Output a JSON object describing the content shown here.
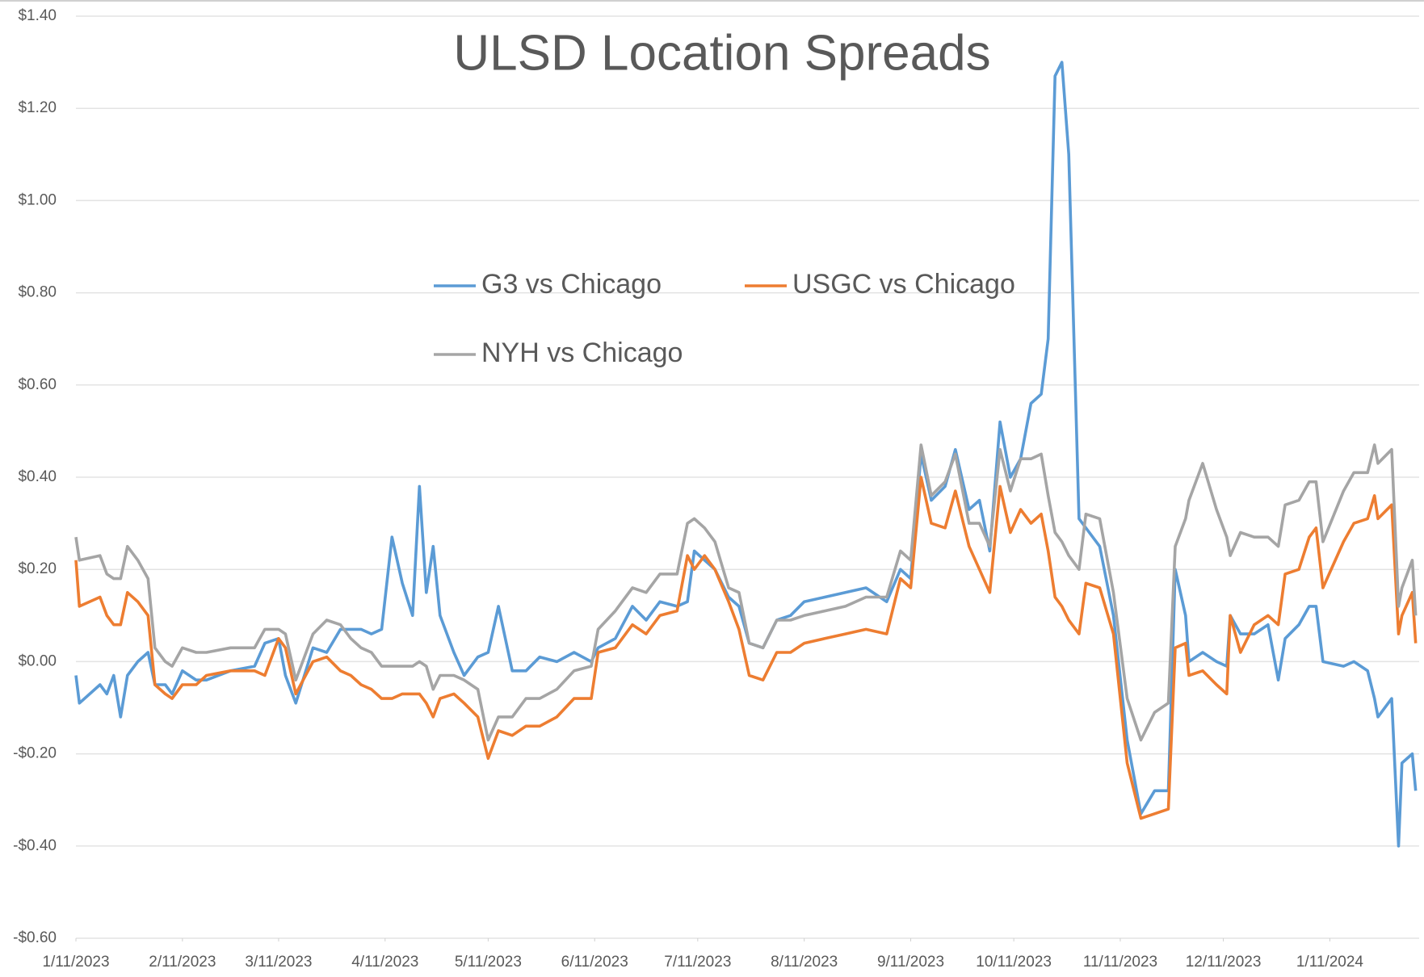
{
  "chart_data": {
    "type": "line",
    "title": "ULSD Location Spreads",
    "x": [
      "2023-01-11",
      "2023-01-12",
      "2023-01-18",
      "2023-01-20",
      "2023-01-22",
      "2023-01-24",
      "2023-01-26",
      "2023-01-29",
      "2023-02-01",
      "2023-02-03",
      "2023-02-06",
      "2023-02-08",
      "2023-02-11",
      "2023-02-15",
      "2023-02-18",
      "2023-02-25",
      "2023-03-04",
      "2023-03-07",
      "2023-03-11",
      "2023-03-13",
      "2023-03-16",
      "2023-03-21",
      "2023-03-25",
      "2023-03-29",
      "2023-04-01",
      "2023-04-04",
      "2023-04-07",
      "2023-04-10",
      "2023-04-13",
      "2023-04-16",
      "2023-04-19",
      "2023-04-21",
      "2023-04-23",
      "2023-04-25",
      "2023-04-27",
      "2023-05-01",
      "2023-05-04",
      "2023-05-08",
      "2023-05-11",
      "2023-05-14",
      "2023-05-18",
      "2023-05-22",
      "2023-05-26",
      "2023-05-31",
      "2023-06-05",
      "2023-06-10",
      "2023-06-12",
      "2023-06-17",
      "2023-06-22",
      "2023-06-26",
      "2023-06-30",
      "2023-07-05",
      "2023-07-08",
      "2023-07-10",
      "2023-07-13",
      "2023-07-16",
      "2023-07-20",
      "2023-07-23",
      "2023-07-26",
      "2023-07-30",
      "2023-08-03",
      "2023-08-07",
      "2023-08-11",
      "2023-08-17",
      "2023-08-23",
      "2023-08-29",
      "2023-09-04",
      "2023-09-08",
      "2023-09-11",
      "2023-09-14",
      "2023-09-17",
      "2023-09-21",
      "2023-09-24",
      "2023-09-28",
      "2023-10-01",
      "2023-10-04",
      "2023-10-07",
      "2023-10-10",
      "2023-10-13",
      "2023-10-16",
      "2023-10-19",
      "2023-10-21",
      "2023-10-23",
      "2023-10-25",
      "2023-10-27",
      "2023-10-30",
      "2023-11-01",
      "2023-11-05",
      "2023-11-09",
      "2023-11-13",
      "2023-11-17",
      "2023-11-21",
      "2023-11-25",
      "2023-11-27",
      "2023-11-30",
      "2023-12-01",
      "2023-12-05",
      "2023-12-09",
      "2023-12-12",
      "2023-12-13",
      "2023-12-16",
      "2023-12-20",
      "2023-12-24",
      "2023-12-27",
      "2023-12-29",
      "2024-01-02",
      "2024-01-05",
      "2024-01-07",
      "2024-01-09",
      "2024-01-15",
      "2024-01-18",
      "2024-01-22",
      "2024-01-24",
      "2024-01-25",
      "2024-01-29",
      "2024-01-31",
      "2024-02-01",
      "2024-02-04",
      "2024-02-05"
    ],
    "series": [
      {
        "name": "G3 vs Chicago",
        "color": "#5b9bd5",
        "values": [
          -0.03,
          -0.09,
          -0.05,
          -0.07,
          -0.03,
          -0.12,
          -0.03,
          0.0,
          0.02,
          -0.05,
          -0.05,
          -0.07,
          -0.02,
          -0.04,
          -0.04,
          -0.02,
          -0.01,
          0.04,
          0.05,
          -0.03,
          -0.09,
          0.03,
          0.02,
          0.07,
          0.07,
          0.07,
          0.06,
          0.07,
          0.27,
          0.17,
          0.1,
          0.38,
          0.15,
          0.25,
          0.1,
          0.02,
          -0.03,
          0.01,
          0.02,
          0.12,
          -0.02,
          -0.02,
          0.01,
          0.0,
          0.02,
          0.0,
          0.03,
          0.05,
          0.12,
          0.09,
          0.13,
          0.12,
          0.13,
          0.24,
          0.22,
          0.2,
          0.14,
          0.12,
          0.04,
          0.03,
          0.09,
          0.1,
          0.13,
          0.14,
          0.15,
          0.16,
          0.13,
          0.2,
          0.18,
          0.45,
          0.35,
          0.38,
          0.46,
          0.33,
          0.35,
          0.24,
          0.52,
          0.4,
          0.44,
          0.56,
          0.58,
          0.7,
          1.27,
          1.3,
          1.1,
          0.31,
          0.29,
          0.25,
          0.1,
          -0.17,
          -0.33,
          -0.28,
          -0.28,
          0.2,
          0.1,
          0.0,
          0.02,
          0.0,
          -0.01,
          0.1,
          0.06,
          0.06,
          0.08,
          -0.04,
          0.05,
          0.08,
          0.12,
          0.12,
          0.0,
          -0.01,
          0.0,
          -0.02,
          -0.08,
          -0.12,
          -0.08,
          -0.4,
          -0.22,
          -0.2,
          -0.28
        ]
      },
      {
        "name": "USGC vs Chicago",
        "color": "#ed7d31",
        "values": [
          0.22,
          0.12,
          0.14,
          0.1,
          0.08,
          0.08,
          0.15,
          0.13,
          0.1,
          -0.05,
          -0.07,
          -0.08,
          -0.05,
          -0.05,
          -0.03,
          -0.02,
          -0.02,
          -0.03,
          0.05,
          0.03,
          -0.07,
          0.0,
          0.01,
          -0.02,
          -0.03,
          -0.05,
          -0.06,
          -0.08,
          -0.08,
          -0.07,
          -0.07,
          -0.07,
          -0.09,
          -0.12,
          -0.08,
          -0.07,
          -0.09,
          -0.12,
          -0.21,
          -0.15,
          -0.16,
          -0.14,
          -0.14,
          -0.12,
          -0.08,
          -0.08,
          0.02,
          0.03,
          0.08,
          0.06,
          0.1,
          0.11,
          0.23,
          0.2,
          0.23,
          0.2,
          0.13,
          0.07,
          -0.03,
          -0.04,
          0.02,
          0.02,
          0.04,
          0.05,
          0.06,
          0.07,
          0.06,
          0.18,
          0.16,
          0.4,
          0.3,
          0.29,
          0.37,
          0.25,
          0.2,
          0.15,
          0.38,
          0.28,
          0.33,
          0.3,
          0.32,
          0.24,
          0.14,
          0.12,
          0.09,
          0.06,
          0.17,
          0.16,
          0.06,
          -0.22,
          -0.34,
          -0.33,
          -0.32,
          0.03,
          0.04,
          -0.03,
          -0.02,
          -0.05,
          -0.07,
          0.1,
          0.02,
          0.08,
          0.1,
          0.08,
          0.19,
          0.2,
          0.27,
          0.29,
          0.16,
          0.26,
          0.3,
          0.31,
          0.36,
          0.31,
          0.34,
          0.06,
          0.1,
          0.15,
          0.04
        ]
      },
      {
        "name": "NYH vs Chicago",
        "color": "#a5a5a5",
        "values": [
          0.27,
          0.22,
          0.23,
          0.19,
          0.18,
          0.18,
          0.25,
          0.22,
          0.18,
          0.03,
          0.0,
          -0.01,
          0.03,
          0.02,
          0.02,
          0.03,
          0.03,
          0.07,
          0.07,
          0.06,
          -0.04,
          0.06,
          0.09,
          0.08,
          0.05,
          0.03,
          0.02,
          -0.01,
          -0.01,
          -0.01,
          -0.01,
          0.0,
          -0.01,
          -0.06,
          -0.03,
          -0.03,
          -0.04,
          -0.06,
          -0.17,
          -0.12,
          -0.12,
          -0.08,
          -0.08,
          -0.06,
          -0.02,
          -0.01,
          0.07,
          0.11,
          0.16,
          0.15,
          0.19,
          0.19,
          0.3,
          0.31,
          0.29,
          0.26,
          0.16,
          0.15,
          0.04,
          0.03,
          0.09,
          0.09,
          0.1,
          0.11,
          0.12,
          0.14,
          0.14,
          0.24,
          0.22,
          0.47,
          0.36,
          0.39,
          0.45,
          0.3,
          0.3,
          0.25,
          0.46,
          0.37,
          0.44,
          0.44,
          0.45,
          0.36,
          0.28,
          0.26,
          0.23,
          0.2,
          0.32,
          0.31,
          0.15,
          -0.08,
          -0.17,
          -0.11,
          -0.09,
          0.25,
          0.31,
          0.35,
          0.43,
          0.33,
          0.27,
          0.23,
          0.28,
          0.27,
          0.27,
          0.25,
          0.34,
          0.35,
          0.39,
          0.39,
          0.26,
          0.37,
          0.41,
          0.41,
          0.47,
          0.43,
          0.46,
          0.12,
          0.16,
          0.22,
          0.1
        ]
      }
    ],
    "xlim": [
      "2023-01-11",
      "2024-02-06"
    ],
    "xticks": [
      {
        "value": "2023-01-11",
        "label": "1/11/2023"
      },
      {
        "value": "2023-02-11",
        "label": "2/11/2023"
      },
      {
        "value": "2023-03-11",
        "label": "3/11/2023"
      },
      {
        "value": "2023-04-11",
        "label": "4/11/2023"
      },
      {
        "value": "2023-05-11",
        "label": "5/11/2023"
      },
      {
        "value": "2023-06-11",
        "label": "6/11/2023"
      },
      {
        "value": "2023-07-11",
        "label": "7/11/2023"
      },
      {
        "value": "2023-08-11",
        "label": "8/11/2023"
      },
      {
        "value": "2023-09-11",
        "label": "9/11/2023"
      },
      {
        "value": "2023-10-11",
        "label": "10/11/2023"
      },
      {
        "value": "2023-11-11",
        "label": "11/11/2023"
      },
      {
        "value": "2023-12-11",
        "label": "12/11/2023"
      },
      {
        "value": "2024-01-11",
        "label": "1/11/2024"
      }
    ],
    "ylim": [
      -0.6,
      1.4
    ],
    "yticks": [
      {
        "value": -0.6,
        "label": "-$0.60"
      },
      {
        "value": -0.4,
        "label": "-$0.40"
      },
      {
        "value": -0.2,
        "label": "-$0.20"
      },
      {
        "value": 0,
        "label": "$0.00"
      },
      {
        "value": 0.2,
        "label": "$0.20"
      },
      {
        "value": 0.4,
        "label": "$0.40"
      },
      {
        "value": 0.6,
        "label": "$0.60"
      },
      {
        "value": 0.8,
        "label": "$0.80"
      },
      {
        "value": 1.0,
        "label": "$1.00"
      },
      {
        "value": 1.2,
        "label": "$1.20"
      },
      {
        "value": 1.4,
        "label": "$1.40"
      }
    ],
    "grid": true
  }
}
